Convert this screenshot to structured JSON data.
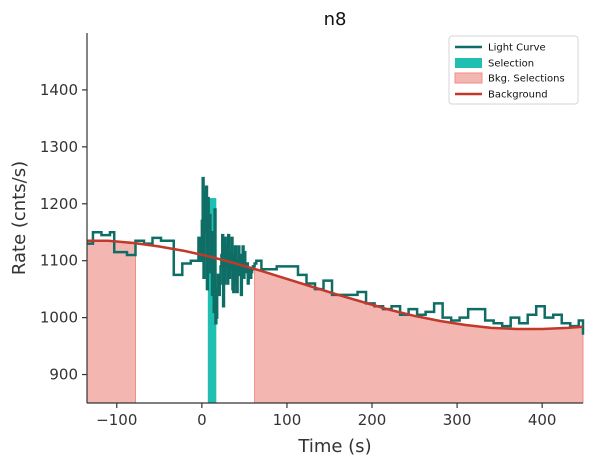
{
  "chart_data": {
    "type": "line",
    "title": "n8",
    "xlabel": "Time (s)",
    "ylabel": "Rate (cnts/s)",
    "xlim": [
      -135,
      448
    ],
    "ylim": [
      850,
      1500
    ],
    "x_ticks": [
      -100,
      0,
      100,
      200,
      300,
      400
    ],
    "y_ticks": [
      900,
      1000,
      1100,
      1200,
      1300,
      1400
    ],
    "x_tick_labels": [
      "−100",
      "0",
      "100",
      "200",
      "300",
      "400"
    ],
    "y_tick_labels": [
      "900",
      "1000",
      "1100",
      "1200",
      "1300",
      "1400"
    ],
    "legend_position": "top-right",
    "legend": [
      "Light Curve",
      "Selection",
      "Bkg. Selections",
      "Background"
    ],
    "colors": {
      "light_curve": "#0e6e66",
      "selection": "#1fbfb1",
      "bkg_selection": "#f4b6b0",
      "bkg_selection_edge": "#f08d85",
      "background": "#c0392b"
    },
    "light_curve": {
      "x": [
        -135,
        -128,
        -118,
        -108,
        -103,
        -98,
        -88,
        -78,
        -73,
        -68,
        -58,
        -48,
        -38,
        -33,
        -28,
        -23,
        -18,
        -13,
        -8,
        -4,
        -2,
        0,
        1,
        2,
        3,
        4,
        5,
        6,
        7,
        8,
        9,
        10,
        11,
        12,
        13,
        14,
        15,
        16,
        17,
        18,
        19,
        20,
        21,
        22,
        23,
        24,
        25,
        26,
        27,
        28,
        29,
        30,
        31,
        32,
        33,
        34,
        35,
        36,
        37,
        38,
        39,
        40,
        41,
        42,
        43,
        44,
        45,
        46,
        47,
        48,
        49,
        50,
        51,
        52,
        53,
        54,
        55,
        56,
        57,
        58,
        59,
        60,
        62,
        64,
        70,
        80,
        88,
        103,
        113,
        123,
        133,
        143,
        153,
        163,
        173,
        183,
        193,
        203,
        213,
        223,
        233,
        243,
        253,
        263,
        273,
        283,
        293,
        303,
        313,
        323,
        333,
        343,
        353,
        363,
        373,
        383,
        393,
        403,
        413,
        423,
        433,
        443,
        448
      ],
      "y": [
        1130,
        1150,
        1145,
        1150,
        1115,
        1115,
        1110,
        1135,
        1135,
        1130,
        1140,
        1135,
        1135,
        1075,
        1075,
        1095,
        1095,
        1100,
        1100,
        1140,
        1100,
        1170,
        1245,
        1070,
        1220,
        1150,
        1230,
        1050,
        1210,
        1160,
        1180,
        1080,
        1150,
        1040,
        1100,
        1010,
        1190,
        990,
        1000,
        1050,
        1075,
        1040,
        1060,
        1090,
        1110,
        1145,
        1020,
        1060,
        1140,
        1090,
        1125,
        1060,
        1145,
        1070,
        1115,
        1085,
        1140,
        1050,
        1045,
        1110,
        1125,
        1060,
        1045,
        1100,
        1125,
        1075,
        1110,
        1040,
        1090,
        1125,
        1070,
        1115,
        1090,
        1080,
        1095,
        1060,
        1075,
        1085,
        1070,
        1080,
        1085,
        1090,
        1095,
        1100,
        1085,
        1085,
        1090,
        1090,
        1075,
        1060,
        1050,
        1065,
        1040,
        1040,
        1040,
        1045,
        1025,
        1020,
        1015,
        1020,
        1005,
        1015,
        1005,
        1010,
        1025,
        1000,
        995,
        1000,
        1015,
        1015,
        995,
        990,
        985,
        1000,
        990,
        1005,
        1020,
        1000,
        1005,
        990,
        985,
        995,
        970
      ],
      "step": true
    },
    "background_model": {
      "x": [
        -135,
        -110,
        -80,
        -50,
        -20,
        10,
        40,
        70,
        100,
        130,
        160,
        190,
        220,
        250,
        280,
        310,
        340,
        370,
        400,
        430,
        448
      ],
      "y": [
        1135,
        1135,
        1131,
        1125,
        1117,
        1107,
        1095,
        1082,
        1068,
        1054,
        1040,
        1027,
        1014,
        1003,
        994,
        987,
        982,
        980,
        980,
        982,
        984
      ]
    },
    "source_selection": [
      7,
      17
    ],
    "bkg_selections": [
      [
        -135,
        -78
      ],
      [
        62,
        448
      ]
    ]
  }
}
